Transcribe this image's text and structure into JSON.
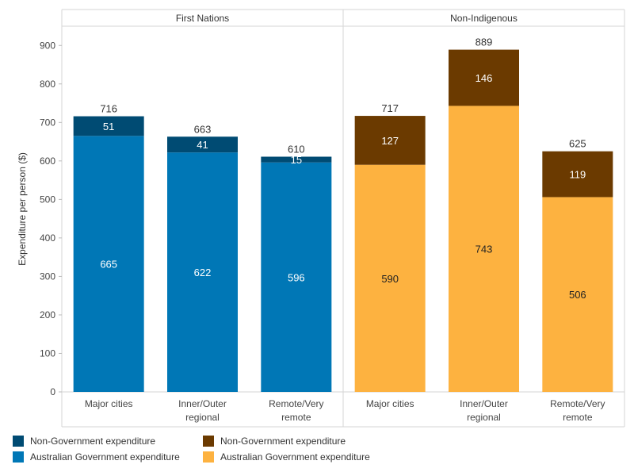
{
  "chart_data": {
    "type": "bar",
    "stacked": true,
    "ylabel": "Expenditure per person ($)",
    "ylim": [
      0,
      950
    ],
    "yticks": [
      0,
      100,
      200,
      300,
      400,
      500,
      600,
      700,
      800,
      900
    ],
    "grid": false,
    "legend_position": "bottom-left",
    "panels": [
      {
        "title": "First Nations",
        "categories": [
          "Major cities",
          "Inner/Outer regional",
          "Remote/Very remote"
        ],
        "category_lines": [
          [
            "Major cities"
          ],
          [
            "Inner/Outer",
            "regional"
          ],
          [
            "Remote/Very",
            "remote"
          ]
        ],
        "series": [
          {
            "name": "Australian Government expenditure",
            "color": "#0077b6",
            "values": [
              665,
              622,
              596
            ]
          },
          {
            "name": "Non-Government expenditure",
            "color": "#004b73",
            "values": [
              51,
              41,
              15
            ]
          }
        ],
        "totals": [
          716,
          663,
          610
        ]
      },
      {
        "title": "Non-Indigenous",
        "categories": [
          "Major cities",
          "Inner/Outer regional",
          "Remote/Very remote"
        ],
        "category_lines": [
          [
            "Major cities"
          ],
          [
            "Inner/Outer",
            "regional"
          ],
          [
            "Remote/Very",
            "remote"
          ]
        ],
        "series": [
          {
            "name": "Australian Government expenditure",
            "color": "#fdb240",
            "values": [
              590,
              743,
              506
            ]
          },
          {
            "name": "Non-Government expenditure",
            "color": "#6b3a00",
            "values": [
              127,
              146,
              119
            ]
          }
        ],
        "totals": [
          717,
          889,
          625
        ]
      }
    ]
  },
  "legend": {
    "first_nations": [
      {
        "label": "Non-Government expenditure",
        "color": "#004b73"
      },
      {
        "label": "Australian Government expenditure",
        "color": "#0077b6"
      }
    ],
    "non_indigenous": [
      {
        "label": "Non-Government expenditure",
        "color": "#6b3a00"
      },
      {
        "label": "Australian Government expenditure",
        "color": "#fdb240"
      }
    ]
  }
}
